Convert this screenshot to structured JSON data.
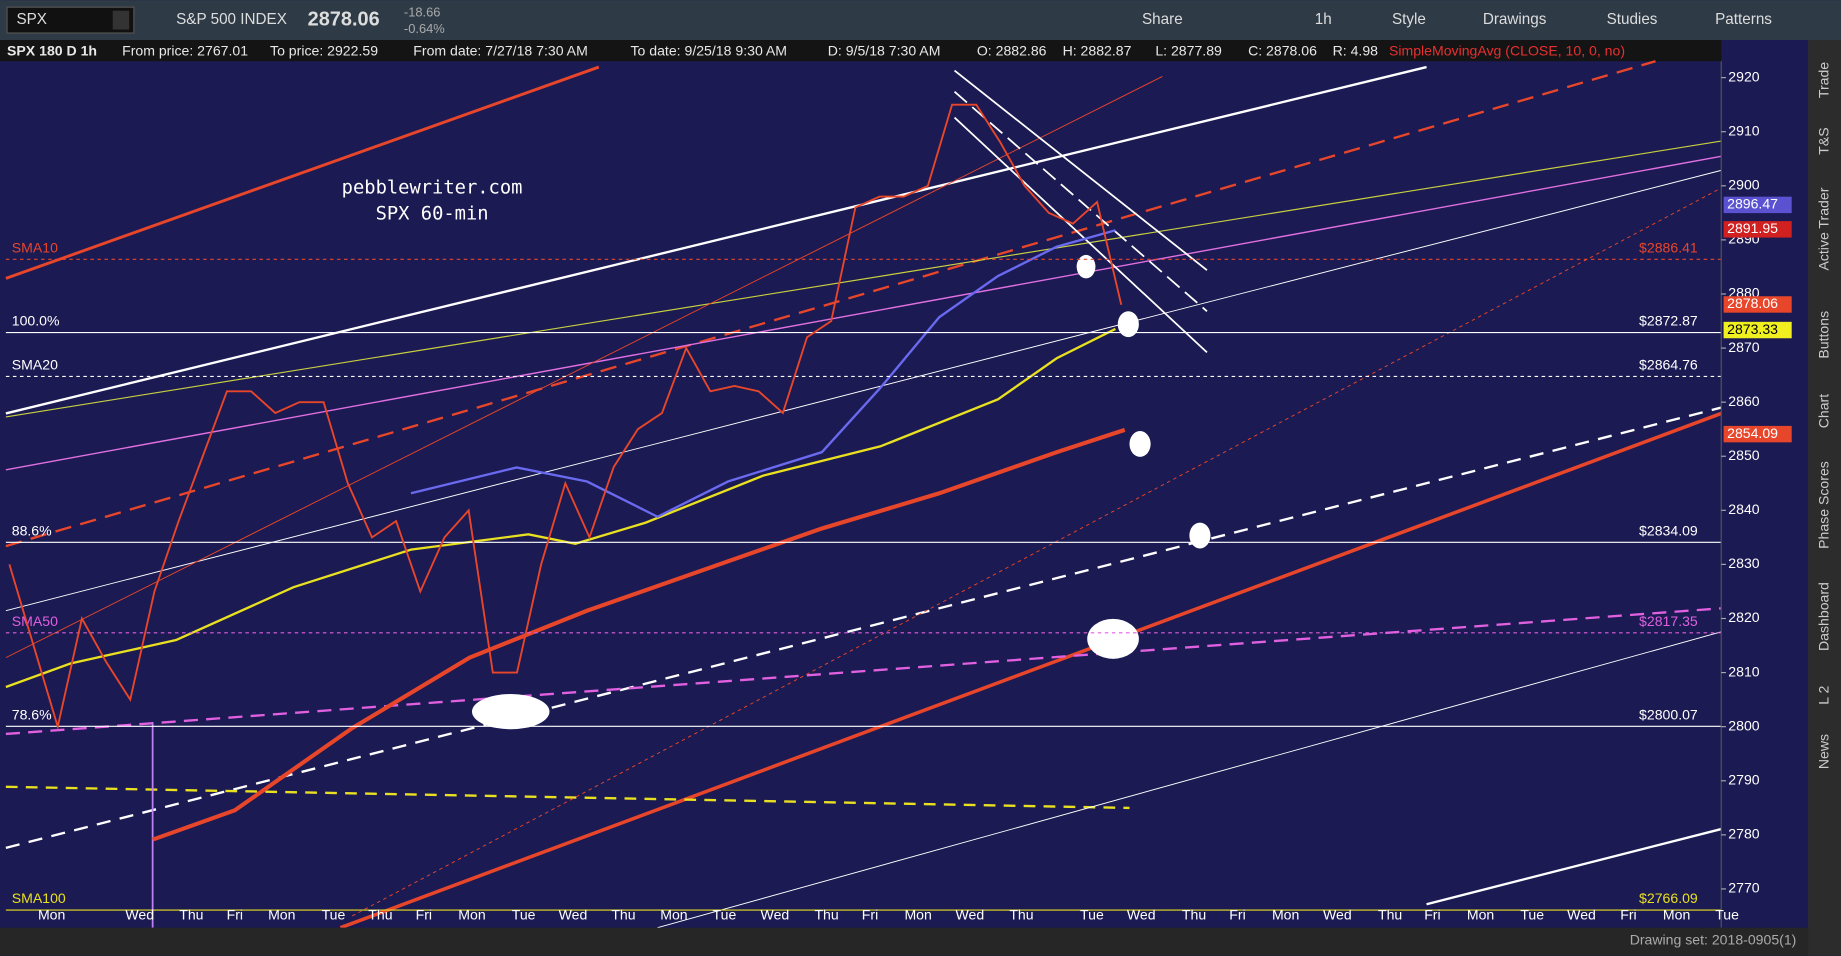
{
  "toolbar": {
    "symbol": "SPX",
    "name": "S&P 500 INDEX",
    "last": "2878.06",
    "change": "-18.66",
    "change_pct": "-0.64%",
    "buttons": [
      "Share",
      "1h",
      "Style",
      "Drawings",
      "Studies",
      "Patterns"
    ]
  },
  "infobar": {
    "study": "SPX 180 D 1h",
    "from_price": "From price: 2767.01",
    "to_price": "To price: 2922.59",
    "from_date": "From date: 7/27/18 7:30 AM",
    "to_date": "To date: 9/25/18 9:30 AM",
    "d": "D: 9/5/18 7:30 AM",
    "o": "O: 2882.86",
    "h": "H: 2882.87",
    "l": "L: 2877.89",
    "c": "C: 2878.06",
    "r": "R: 4.98",
    "indicator": "SimpleMovingAvg (CLOSE, 10, 0, no)"
  },
  "watermark": [
    "pebblewriter.com",
    "SPX 60-min"
  ],
  "price": {
    "ylim": [
      2770,
      2920
    ],
    "yticks": [
      2770,
      2780,
      2790,
      2800,
      2810,
      2820,
      2830,
      2840,
      2850,
      2860,
      2870,
      2880,
      2890,
      2900,
      2910,
      2920
    ],
    "closes": [
      2830,
      2815,
      2800,
      2820,
      2812,
      2805,
      2825,
      2838,
      2850,
      2862,
      2862,
      2858,
      2860,
      2860,
      2845,
      2835,
      2838,
      2825,
      2835,
      2840,
      2810,
      2810,
      2830,
      2845,
      2835,
      2848,
      2855,
      2858,
      2870,
      2862,
      2863,
      2862,
      2858,
      2872,
      2875,
      2896,
      2898,
      2898,
      2900,
      2915,
      2915,
      2908,
      2900,
      2895,
      2893,
      2897,
      2878
    ],
    "color": "#e8462a"
  },
  "levels": [
    {
      "name": "SMA10",
      "value": 2886.41,
      "label": "$2886.41",
      "color": "#e8462a",
      "dash": true
    },
    {
      "name": "100.0%",
      "value": 2872.87,
      "label": "$2872.87",
      "color": "#ffffff",
      "dash": false
    },
    {
      "name": "SMA20",
      "value": 2864.76,
      "label": "$2864.76",
      "color": "#ffffff",
      "dash": true
    },
    {
      "name": "88.6%",
      "value": 2834.09,
      "label": "$2834.09",
      "color": "#ffffff",
      "dash": false
    },
    {
      "name": "SMA50",
      "value": 2817.35,
      "label": "$2817.35",
      "color": "#e060e0",
      "dash": true
    },
    {
      "name": "78.6%",
      "value": 2800.07,
      "label": "$2800.07",
      "color": "#ffffff",
      "dash": false
    },
    {
      "name": "SMA100",
      "value": 2766.09,
      "label": "$2766.09",
      "color": "#e8e020",
      "dash": false
    }
  ],
  "tags": [
    {
      "value": 2896.47,
      "label": "2896.47",
      "bg": "#5a52d0",
      "fg": "#ffffff"
    },
    {
      "value": 2891.95,
      "label": "2891.95",
      "bg": "#d02020",
      "fg": "#ffffff"
    },
    {
      "value": 2878.06,
      "label": "2878.06",
      "bg": "#e8462a",
      "fg": "#ffffff"
    },
    {
      "value": 2873.33,
      "label": "2873.33",
      "bg": "#f0f020",
      "fg": "#000000"
    },
    {
      "value": 2854.09,
      "label": "2854.09",
      "bg": "#e8462a",
      "fg": "#ffffff"
    }
  ],
  "days": [
    "Mon",
    "Wed",
    "Thu",
    "Fri",
    "Mon",
    "Tue",
    "Thu",
    "Fri",
    "Mon",
    "Tue",
    "Wed",
    "Thu",
    "Mon",
    "Tue",
    "Wed",
    "Thu",
    "Fri",
    "Mon",
    "Wed",
    "Thu",
    "Tue",
    "Wed",
    "Thu",
    "Fri",
    "Mon",
    "Wed",
    "Thu",
    "Fri",
    "Mon",
    "Tue",
    "Wed",
    "Fri",
    "Mon",
    "Tue"
  ],
  "side_tabs": [
    "Trade",
    "T&S",
    "Active Trader",
    "Buttons",
    "Chart",
    "Phase Scores",
    "Dashboard",
    "L 2",
    "News"
  ],
  "footer": "Drawing set: 2018-0905(1)"
}
